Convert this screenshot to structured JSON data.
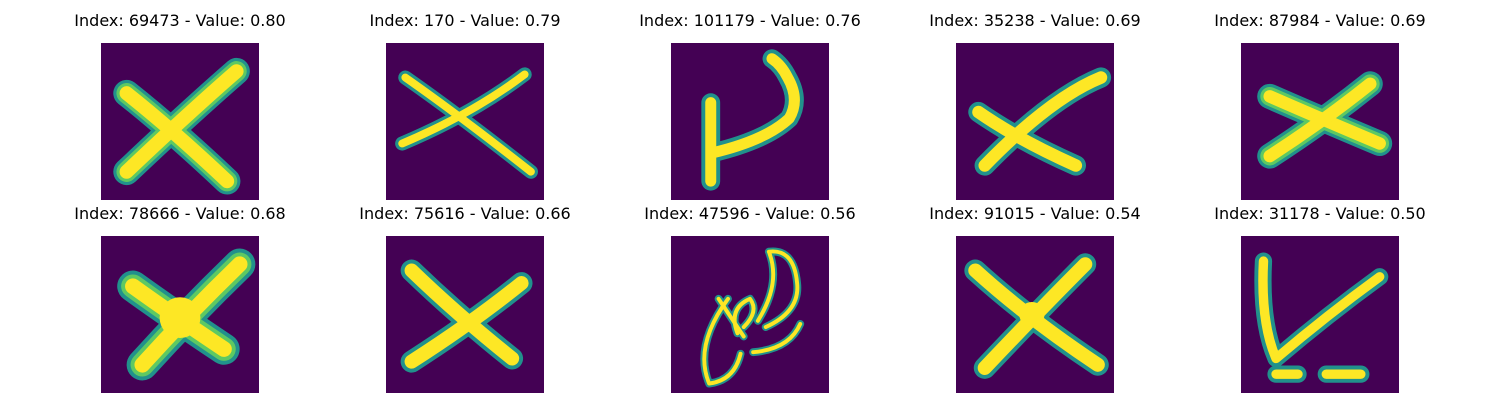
{
  "colormap": "viridis",
  "colors": {
    "background": "#440154",
    "edge": "#21918c",
    "mid": "#5ec962",
    "stroke": "#fde725"
  },
  "panels": [
    {
      "title": "Index: 69473 - Value: 0.80",
      "index": 69473,
      "value": 0.8,
      "glyph": "x-thick"
    },
    {
      "title": "Index: 170 - Value: 0.79",
      "index": 170,
      "value": 0.79,
      "glyph": "x-thin"
    },
    {
      "title": "Index: 101179 - Value: 0.76",
      "index": 101179,
      "value": 0.76,
      "glyph": "hook"
    },
    {
      "title": "Index: 35238 - Value: 0.69",
      "index": 35238,
      "value": 0.69,
      "glyph": "x-offset"
    },
    {
      "title": "Index: 87984 - Value: 0.69",
      "index": 87984,
      "value": 0.69,
      "glyph": "x-wide"
    },
    {
      "title": "Index: 78666 - Value: 0.68",
      "index": 78666,
      "value": 0.68,
      "glyph": "x-blob"
    },
    {
      "title": "Index: 75616 - Value: 0.66",
      "index": 75616,
      "value": 0.66,
      "glyph": "x-tilted"
    },
    {
      "title": "Index: 47596 - Value: 0.56",
      "index": 47596,
      "value": 0.56,
      "glyph": "scribble"
    },
    {
      "title": "Index: 91015 - Value: 0.54",
      "index": 91015,
      "value": 0.54,
      "glyph": "x-regular"
    },
    {
      "title": "Index: 31178 - Value: 0.50",
      "index": 31178,
      "value": 0.5,
      "glyph": "check-underline"
    }
  ]
}
